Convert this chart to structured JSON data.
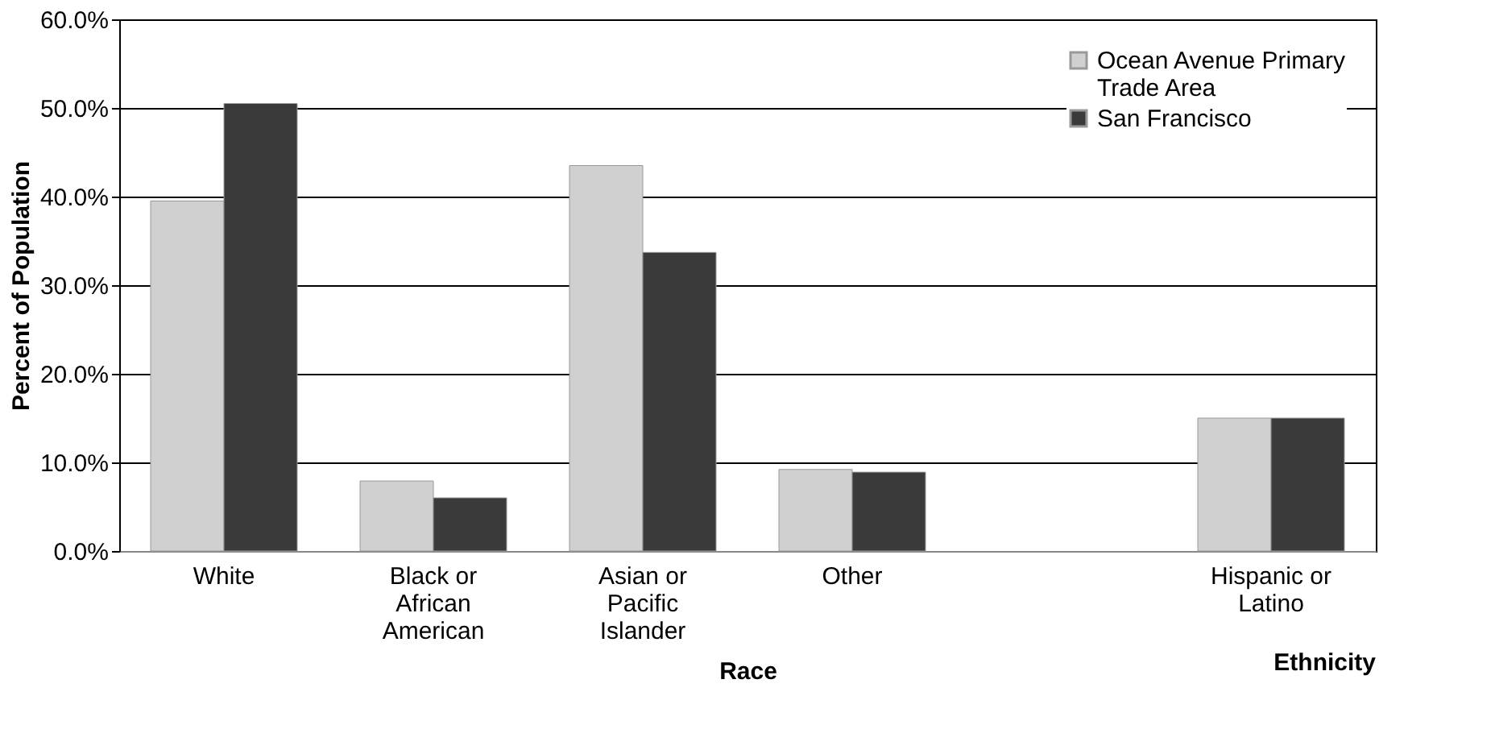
{
  "chart_data": {
    "type": "bar",
    "xlabel": "Race",
    "ylabel": "Percent of Population",
    "annotations": [
      "Ethnicity"
    ],
    "categories": [
      "White",
      "Black or African American",
      "Asian or Pacific Islander",
      "Other",
      null,
      "Hispanic or Latino"
    ],
    "series": [
      {
        "name": "Ocean Avenue Primary Trade Area",
        "color": "#d0d0d0",
        "values": [
          39.5,
          7.9,
          43.5,
          9.2,
          null,
          15.0
        ]
      },
      {
        "name": "San Francisco",
        "color": "#3a3a3a",
        "values": [
          50.5,
          6.0,
          33.7,
          8.9,
          null,
          15.0
        ]
      }
    ],
    "ylim": [
      0,
      60
    ],
    "yticks": [
      {
        "value": 0,
        "label": "0.0%"
      },
      {
        "value": 10,
        "label": "10.0%"
      },
      {
        "value": 20,
        "label": "20.0%"
      },
      {
        "value": 30,
        "label": "30.0%"
      },
      {
        "value": 40,
        "label": "40.0%"
      },
      {
        "value": 50,
        "label": "50.0%"
      },
      {
        "value": 60,
        "label": "60.0%"
      }
    ],
    "grid": "y",
    "legend": "top right"
  }
}
